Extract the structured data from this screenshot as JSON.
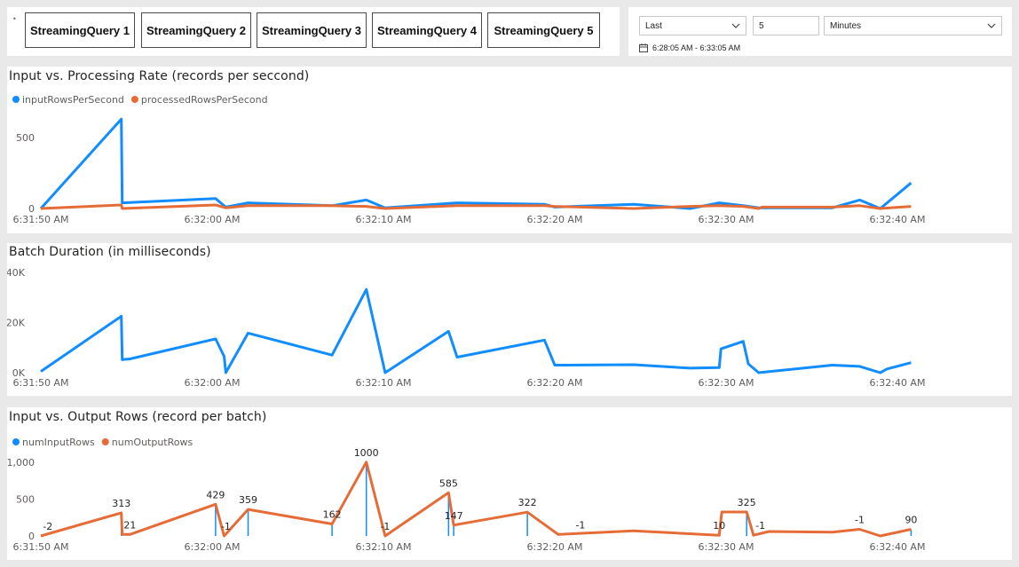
{
  "tabs": [
    "StreamingQuery 1",
    "StreamingQuery 2",
    "StreamingQuery 3",
    "StreamingQuery 4",
    "StreamingQuery 5"
  ],
  "filter": {
    "relative": "Last",
    "amount": "5",
    "unit": "Minutes",
    "range": "6:28:05 AM - 6:33:05 AM"
  },
  "colors": {
    "blue": "#118DFF",
    "orange": "#E66C37",
    "tick": "#605E5C",
    "grid": "#E6E6E6"
  },
  "chart_data": [
    {
      "type": "line",
      "title": "Input vs. Processing Rate (records per seccond)",
      "x_ticks": [
        "6:31:50 AM",
        "6:32:00 AM",
        "6:32:10 AM",
        "6:32:20 AM",
        "6:32:30 AM",
        "6:32:40 AM"
      ],
      "y_ticks": [
        "0",
        "500"
      ],
      "ylim": [
        0,
        700
      ],
      "legend_position": "top-left",
      "series": [
        {
          "name": "inputRowsPerSecond",
          "color": "#118DFF",
          "x": [
            0,
            4.7,
            4.75,
            10.2,
            10.8,
            12.1,
            17,
            19,
            20.1,
            24.3,
            29.4,
            30,
            34.6,
            37.9,
            39.6,
            41,
            41.9,
            42.1,
            46.2,
            47.8,
            49,
            50.8
          ],
          "y": [
            0,
            630,
            40,
            70,
            10,
            40,
            20,
            60,
            5,
            40,
            30,
            10,
            30,
            0,
            40,
            20,
            5,
            5,
            5,
            60,
            0,
            180
          ]
        },
        {
          "name": "processedRowsPerSecond",
          "color": "#E66C37",
          "x": [
            0,
            4.7,
            4.75,
            10.2,
            10.8,
            12.1,
            17,
            19,
            20.1,
            24.3,
            29.4,
            30,
            34.6,
            37.9,
            39.6,
            41,
            41.9,
            42.1,
            46.2,
            47.8,
            49,
            50.8
          ],
          "y": [
            0,
            25,
            0,
            25,
            5,
            20,
            20,
            15,
            0,
            20,
            20,
            15,
            0,
            15,
            20,
            15,
            0,
            10,
            10,
            20,
            0,
            15
          ]
        }
      ]
    },
    {
      "type": "line",
      "title": "Batch Duration (in milliseconds)",
      "x_ticks": [
        "6:31:50 AM",
        "6:32:00 AM",
        "6:32:10 AM",
        "6:32:20 AM",
        "6:32:30 AM",
        "6:32:40 AM"
      ],
      "y_ticks": [
        "0K",
        "20K",
        "40K"
      ],
      "ylim": [
        0,
        40000
      ],
      "series": [
        {
          "name": "",
          "color": "#118DFF",
          "x": [
            0,
            4.7,
            4.75,
            5.2,
            10.2,
            10.7,
            10.8,
            12.1,
            17,
            19,
            20.1,
            23.8,
            24.3,
            29.4,
            30,
            34.6,
            37.9,
            39.6,
            39.7,
            41,
            41.3,
            41.9,
            46.2,
            47.8,
            49,
            49.4,
            50.8
          ],
          "y": [
            500,
            22500,
            5200,
            5500,
            13500,
            6500,
            0,
            15800,
            7000,
            33200,
            0,
            16500,
            6200,
            13000,
            3000,
            3200,
            1800,
            2000,
            9500,
            12500,
            3500,
            0,
            3000,
            2500,
            0,
            1500,
            4000
          ]
        }
      ]
    },
    {
      "type": "line",
      "title": "Input vs. Output Rows (record per batch)",
      "x_ticks": [
        "6:31:50 AM",
        "6:32:00 AM",
        "6:32:10 AM",
        "6:32:20 AM",
        "6:32:30 AM",
        "6:32:40 AM"
      ],
      "y_ticks": [
        "0",
        "500",
        "1,000"
      ],
      "ylim": [
        0,
        1250
      ],
      "legend_position": "top-left",
      "series": [
        {
          "name": "numInputRows",
          "color": "#118DFF",
          "style": "stems",
          "x": [
            4.7,
            10.2,
            10.8,
            12.1,
            17,
            19,
            23.8,
            24.1,
            28.4,
            39.6,
            41.2,
            49,
            50.8
          ],
          "y": [
            313,
            429,
            0,
            359,
            162,
            1000,
            585,
            147,
            322,
            10,
            325,
            0,
            90
          ]
        },
        {
          "name": "numOutputRows",
          "color": "#E66C37",
          "x": [
            0,
            4.7,
            4.75,
            5.2,
            10.2,
            10.7,
            12.1,
            17,
            19,
            20.1,
            23.8,
            24.1,
            28.4,
            30.2,
            34.6,
            39.6,
            39.75,
            41.2,
            41.6,
            42.5,
            46.2,
            47.8,
            49,
            50.8
          ],
          "y": [
            0,
            313,
            21,
            21,
            429,
            0,
            359,
            162,
            1000,
            0,
            585,
            147,
            322,
            20,
            70,
            10,
            325,
            325,
            10,
            60,
            50,
            90,
            0,
            90
          ]
        }
      ],
      "data_labels": [
        {
          "x": 0.4,
          "text": "-2"
        },
        {
          "x": 4.7,
          "text": "313"
        },
        {
          "x": 5.2,
          "text": "21"
        },
        {
          "x": 10.2,
          "text": "429"
        },
        {
          "x": 10.8,
          "text": "-1"
        },
        {
          "x": 12.1,
          "text": "359"
        },
        {
          "x": 17,
          "text": "162"
        },
        {
          "x": 19,
          "text": "1000"
        },
        {
          "x": 20.1,
          "text": "-1"
        },
        {
          "x": 23.8,
          "text": "585"
        },
        {
          "x": 24.1,
          "text": "147"
        },
        {
          "x": 28.4,
          "text": "322"
        },
        {
          "x": 31.5,
          "text": "-1"
        },
        {
          "x": 39.6,
          "text": "10"
        },
        {
          "x": 41.2,
          "text": "325"
        },
        {
          "x": 42.0,
          "text": "-1"
        },
        {
          "x": 47.8,
          "text": "-1"
        },
        {
          "x": 50.8,
          "text": "90"
        }
      ]
    }
  ]
}
